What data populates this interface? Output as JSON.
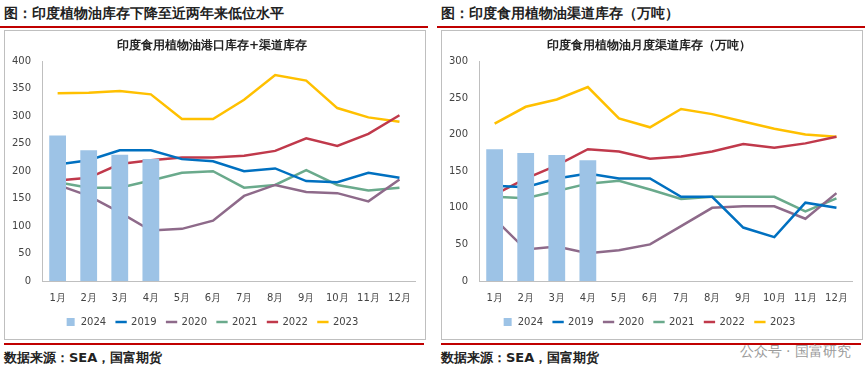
{
  "chart_data": [
    {
      "type": "line",
      "header": "图：印度植物油库存下降至近两年来低位水平",
      "title": "印度食用植物油港口库存+渠道库存",
      "source": "数据来源：SEA，国富期货",
      "categories": [
        "1月",
        "2月",
        "3月",
        "4月",
        "5月",
        "6月",
        "7月",
        "8月",
        "9月",
        "10月",
        "11月",
        "12月"
      ],
      "ylim": [
        0,
        400
      ],
      "yticks": [
        0,
        50,
        100,
        150,
        200,
        250,
        300,
        350,
        400
      ],
      "grid": false,
      "legend": "bottom",
      "series": [
        {
          "name": "2024",
          "type": "bar",
          "color": "#9dc3e6",
          "values": [
            265,
            238,
            230,
            222,
            null,
            null,
            null,
            null,
            null,
            null,
            null,
            null
          ]
        },
        {
          "name": "2019",
          "color": "#0070c0",
          "values": [
            212,
            220,
            238,
            238,
            222,
            218,
            200,
            205,
            182,
            180,
            197,
            188
          ]
        },
        {
          "name": "2020",
          "color": "#8e6a8a",
          "values": [
            175,
            155,
            125,
            92,
            95,
            110,
            155,
            175,
            162,
            160,
            145,
            185
          ]
        },
        {
          "name": "2021",
          "color": "#6aaa8c",
          "values": [
            180,
            170,
            170,
            183,
            197,
            200,
            170,
            175,
            202,
            175,
            165,
            170
          ]
        },
        {
          "name": "2022",
          "color": "#c0394b",
          "values": [
            183,
            188,
            213,
            220,
            225,
            225,
            228,
            237,
            260,
            246,
            268,
            302
          ]
        },
        {
          "name": "2023",
          "color": "#ffc000",
          "values": [
            342,
            343,
            346,
            340,
            295,
            295,
            330,
            375,
            365,
            315,
            298,
            290
          ]
        }
      ]
    },
    {
      "type": "line",
      "header": "图：印度食用植物油渠道库存（万吨）",
      "title": "印度食用植物油月度渠道库存（万吨）",
      "source": "数据来源：SEA，国富期货",
      "categories": [
        "1月",
        "2月",
        "3月",
        "4月",
        "5月",
        "6月",
        "7月",
        "8月",
        "9月",
        "10月",
        "11月",
        "12月"
      ],
      "ylim": [
        0,
        300
      ],
      "yticks": [
        0,
        50,
        100,
        150,
        200,
        250,
        300
      ],
      "grid": false,
      "legend": "bottom",
      "series": [
        {
          "name": "2024",
          "type": "bar",
          "color": "#9dc3e6",
          "values": [
            180,
            175,
            172,
            165,
            null,
            null,
            null,
            null,
            null,
            null,
            null,
            null
          ]
        },
        {
          "name": "2019",
          "color": "#0070c0",
          "values": [
            130,
            128,
            140,
            147,
            140,
            140,
            115,
            115,
            73,
            60,
            107,
            100
          ]
        },
        {
          "name": "2020",
          "color": "#8e6a8a",
          "values": [
            85,
            43,
            47,
            38,
            42,
            50,
            75,
            100,
            102,
            102,
            85,
            120
          ]
        },
        {
          "name": "2021",
          "color": "#6aaa8c",
          "values": [
            115,
            113,
            123,
            133,
            137,
            125,
            112,
            115,
            115,
            115,
            95,
            113
          ]
        },
        {
          "name": "2022",
          "color": "#c0394b",
          "values": [
            118,
            140,
            158,
            180,
            177,
            167,
            170,
            177,
            187,
            182,
            188,
            197
          ]
        },
        {
          "name": "2023",
          "color": "#ffc000",
          "values": [
            215,
            238,
            248,
            265,
            222,
            210,
            235,
            228,
            218,
            208,
            200,
            197
          ]
        }
      ]
    }
  ],
  "watermark": "公众号 · 国富研究"
}
